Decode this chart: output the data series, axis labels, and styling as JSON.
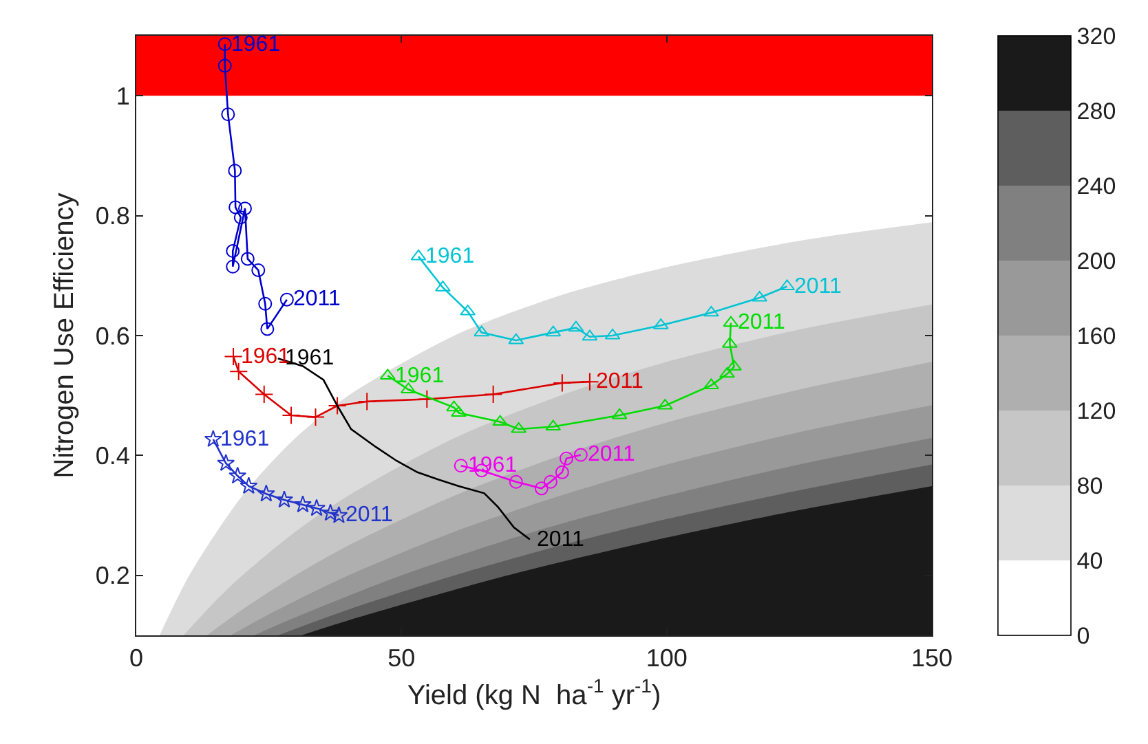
{
  "chart_data": {
    "type": "line",
    "xlabel": "Yield (kg N  ha$^{-1}$ yr$^{-1}$)",
    "ylabel": "Nitrogen Use Efficiency",
    "xlim": [
      0,
      150
    ],
    "xticks": [
      0,
      50,
      100,
      150
    ],
    "ylim": [
      0.1,
      1.1
    ],
    "yticks": [
      0.2,
      0.4,
      0.6,
      0.8,
      1
    ],
    "grid": false,
    "clim": [
      0,
      320
    ],
    "cticks": [
      0,
      40,
      80,
      120,
      160,
      200,
      240,
      280,
      320
    ],
    "bands": [
      {
        "axis": "y",
        "from": 1,
        "to": 1.1,
        "color": "#ff0000"
      }
    ],
    "series": [
      {
        "type": "area",
        "color": "#dcdcdc",
        "x": [
          4.4,
          10,
          20,
          30,
          40,
          60,
          80,
          100,
          125,
          150
        ],
        "values": [
          0.1,
          0.2,
          0.333,
          0.429,
          0.5,
          0.6,
          0.667,
          0.714,
          0.758,
          0.789
        ]
      },
      {
        "type": "area",
        "color": "#c6c6c6",
        "x": [
          8.9,
          15,
          20,
          30,
          40,
          60,
          80,
          100,
          125,
          150
        ],
        "values": [
          0.1,
          0.158,
          0.2,
          0.273,
          0.333,
          0.429,
          0.5,
          0.556,
          0.61,
          0.652
        ]
      },
      {
        "type": "area",
        "color": "#afafaf",
        "x": [
          13.3,
          20,
          30,
          40,
          60,
          80,
          100,
          125,
          150
        ],
        "values": [
          0.1,
          0.143,
          0.2,
          0.25,
          0.333,
          0.4,
          0.455,
          0.51,
          0.556
        ]
      },
      {
        "type": "area",
        "color": "#999999",
        "x": [
          17.8,
          25,
          40,
          60,
          80,
          100,
          125,
          150
        ],
        "values": [
          0.1,
          0.135,
          0.2,
          0.273,
          0.333,
          0.385,
          0.439,
          0.484
        ]
      },
      {
        "type": "area",
        "color": "#808080",
        "x": [
          22.2,
          30,
          50,
          75,
          100,
          125,
          150
        ],
        "values": [
          0.1,
          0.13,
          0.2,
          0.273,
          0.333,
          0.385,
          0.429
        ]
      },
      {
        "type": "area",
        "color": "#5e5e5e",
        "x": [
          26.7,
          40,
          60,
          80,
          100,
          125,
          150
        ],
        "values": [
          0.1,
          0.143,
          0.2,
          0.25,
          0.294,
          0.342,
          0.385
        ]
      },
      {
        "type": "area",
        "color": "#1a1a1a",
        "x": [
          31.1,
          40,
          70,
          100,
          125,
          150
        ],
        "values": [
          0.1,
          0.125,
          0.2,
          0.263,
          0.309,
          0.349
        ]
      },
      {
        "color": "#0000cc",
        "marker": "circle",
        "x": [
          16.7,
          16.7,
          17.3,
          18.6,
          18.7,
          19.7,
          18.2,
          18.2,
          20.5,
          21.0,
          23.0,
          24.3,
          24.7,
          28.4
        ],
        "values": [
          1.086,
          1.05,
          0.969,
          0.875,
          0.814,
          0.797,
          0.741,
          0.715,
          0.812,
          0.728,
          0.709,
          0.653,
          0.611,
          0.66
        ]
      },
      {
        "color": "#2233cc",
        "marker": "star",
        "x": [
          14.5,
          16.9,
          19.1,
          21.2,
          24.5,
          27.9,
          31.4,
          34.0,
          36.6,
          38.2
        ],
        "values": [
          0.427,
          0.387,
          0.366,
          0.349,
          0.336,
          0.326,
          0.318,
          0.312,
          0.304,
          0.3
        ]
      },
      {
        "color": "#dd0000",
        "marker": "cross",
        "x": [
          18.3,
          19.3,
          24.1,
          29.2,
          33.8,
          37.9,
          43.5,
          54.8,
          67.3,
          80.3,
          85.5
        ],
        "values": [
          0.565,
          0.54,
          0.502,
          0.467,
          0.464,
          0.483,
          0.49,
          0.494,
          0.502,
          0.521,
          0.523
        ]
      },
      {
        "color": "#000000",
        "marker": "none",
        "x": [
          26.7,
          31.4,
          35.3,
          37.9,
          40.5,
          45.2,
          49.1,
          53.0,
          56.9,
          60.8,
          65.6,
          68.2,
          71.2,
          74.2
        ],
        "values": [
          0.562,
          0.549,
          0.526,
          0.483,
          0.444,
          0.414,
          0.391,
          0.372,
          0.36,
          0.349,
          0.337,
          0.314,
          0.28,
          0.26
        ]
      },
      {
        "color": "#00dd00",
        "marker": "triangle",
        "x": [
          47.4,
          51.3,
          59.9,
          60.8,
          68.6,
          72.1,
          78.6,
          91.1,
          99.7,
          108.4,
          111.4,
          112.7,
          111.9,
          112.1
        ],
        "values": [
          0.533,
          0.51,
          0.48,
          0.471,
          0.456,
          0.444,
          0.448,
          0.467,
          0.483,
          0.517,
          0.536,
          0.548,
          0.586,
          0.621
        ]
      },
      {
        "color": "#00c4d4",
        "marker": "triangle",
        "x": [
          53.2,
          57.8,
          62.5,
          65.1,
          71.6,
          78.6,
          82.9,
          85.5,
          89.8,
          98.9,
          108.4,
          117.5,
          122.7
        ],
        "values": [
          0.732,
          0.68,
          0.64,
          0.605,
          0.592,
          0.605,
          0.613,
          0.598,
          0.6,
          0.617,
          0.638,
          0.663,
          0.682
        ]
      },
      {
        "color": "#ee00ee",
        "marker": "circle",
        "x": [
          61.2,
          65.1,
          71.6,
          76.4,
          78.1,
          80.3,
          81.1,
          83.8
        ],
        "values": [
          0.383,
          0.375,
          0.356,
          0.345,
          0.356,
          0.372,
          0.395,
          0.401
        ]
      }
    ],
    "annotations": [
      {
        "text": "1961",
        "x": 16.7,
        "y": 1.086
      },
      {
        "text": "2011",
        "x": 28.4,
        "y": 0.66
      },
      {
        "text": "1961",
        "x": 14.5,
        "y": 0.427
      },
      {
        "text": "2011",
        "x": 38.2,
        "y": 0.3
      },
      {
        "text": "1961",
        "x": 18.3,
        "y": 0.565
      },
      {
        "text": "2011",
        "x": 85.5,
        "y": 0.523
      },
      {
        "text": "1961",
        "x": 26.7,
        "y": 0.562
      },
      {
        "text": "2011",
        "x": 74.2,
        "y": 0.26
      },
      {
        "text": "1961",
        "x": 47.4,
        "y": 0.533
      },
      {
        "text": "2011",
        "x": 112.1,
        "y": 0.621
      },
      {
        "text": "1961",
        "x": 53.2,
        "y": 0.732
      },
      {
        "text": "2011",
        "x": 122.7,
        "y": 0.682
      },
      {
        "text": "1961",
        "x": 61.2,
        "y": 0.383
      },
      {
        "text": "2011",
        "x": 83.8,
        "y": 0.401
      }
    ]
  }
}
